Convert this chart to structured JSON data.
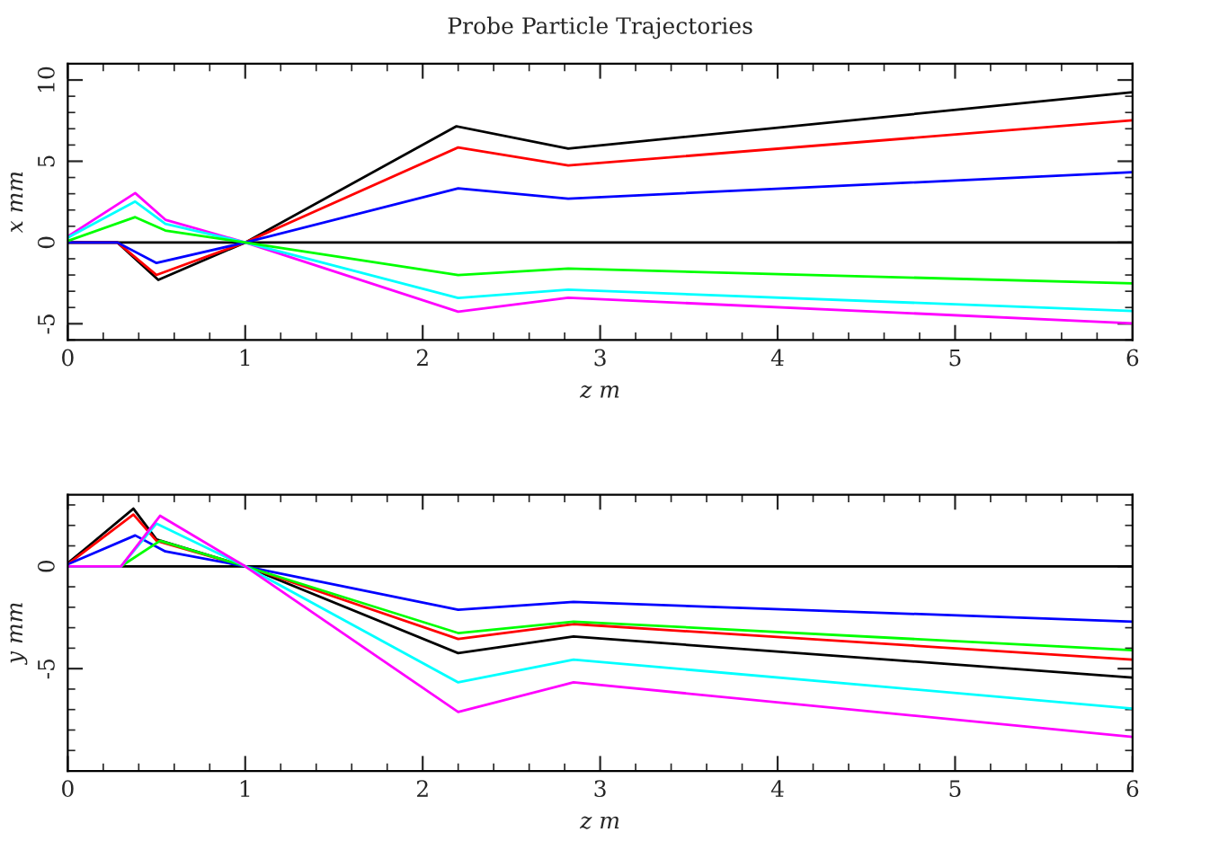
{
  "chart_data": [
    {
      "type": "line",
      "title": "Probe Particle Trajectories",
      "xlabel": "z m",
      "ylabel": "x mm",
      "xlim": [
        0,
        6
      ],
      "xticks": [
        0,
        1,
        2,
        3,
        4,
        5,
        6
      ],
      "ylim": [
        -6,
        11
      ],
      "yticks": [
        -5,
        0,
        5,
        10
      ],
      "ref_lines": [
        {
          "axis": "y",
          "value": 0,
          "color": "#000000"
        }
      ],
      "series": [
        {
          "color": "#000000",
          "x": [
            0,
            0.28,
            0.51,
            1,
            2.19,
            2.82,
            6
          ],
          "values": [
            0,
            0,
            -2.3,
            0,
            7.15,
            5.78,
            9.25
          ]
        },
        {
          "color": "#ff0000",
          "x": [
            0,
            0.28,
            0.5,
            1,
            2.2,
            2.82,
            6
          ],
          "values": [
            0,
            0,
            -2.0,
            0,
            5.85,
            4.74,
            7.52
          ]
        },
        {
          "color": "#0000ff",
          "x": [
            0,
            0.28,
            0.5,
            1,
            2.2,
            2.82,
            6
          ],
          "values": [
            0,
            0,
            -1.26,
            0,
            3.33,
            2.7,
            4.33
          ]
        },
        {
          "color": "#ff00ff",
          "x": [
            0,
            0.38,
            0.55,
            1,
            2.2,
            2.82,
            6
          ],
          "values": [
            0.37,
            3.04,
            1.4,
            0,
            -4.26,
            -3.4,
            -4.97
          ]
        },
        {
          "color": "#00ffff",
          "x": [
            0,
            0.38,
            0.55,
            1,
            2.2,
            2.82,
            6
          ],
          "values": [
            0.3,
            2.52,
            1.15,
            0,
            -3.41,
            -2.9,
            -4.22
          ]
        },
        {
          "color": "#00ff00",
          "x": [
            0,
            0.38,
            0.55,
            1,
            2.2,
            2.82,
            6
          ],
          "values": [
            0.1,
            1.56,
            0.74,
            0,
            -2.0,
            -1.6,
            -2.52
          ]
        }
      ]
    },
    {
      "type": "line",
      "xlabel": "z m",
      "ylabel": "y mm",
      "xlim": [
        0,
        6
      ],
      "xticks": [
        0,
        1,
        2,
        3,
        4,
        5,
        6
      ],
      "ylim": [
        -10,
        3.5
      ],
      "yticks": [
        -5,
        0
      ],
      "ref_lines": [
        {
          "axis": "y",
          "value": 0,
          "color": "#000000"
        }
      ],
      "series": [
        {
          "color": "#000000",
          "x": [
            0,
            0.1,
            0.37,
            0.5,
            1,
            2.2,
            2.85,
            6
          ],
          "values": [
            0.15,
            0.87,
            2.82,
            1.31,
            0,
            -4.24,
            -3.43,
            -5.44
          ]
        },
        {
          "color": "#ff0000",
          "x": [
            0,
            0.37,
            0.5,
            1,
            2.2,
            2.85,
            6
          ],
          "values": [
            0.1,
            2.53,
            1.25,
            0,
            -3.55,
            -2.82,
            -4.56
          ]
        },
        {
          "color": "#0000ff",
          "x": [
            0,
            0.38,
            0.55,
            1,
            2.2,
            2.85,
            6
          ],
          "values": [
            0.1,
            1.51,
            0.73,
            0,
            -2.12,
            -1.74,
            -2.7
          ]
        },
        {
          "color": "#00ff00",
          "x": [
            0,
            0.3,
            0.52,
            1,
            2.2,
            2.85,
            6
          ],
          "values": [
            0,
            0,
            1.25,
            0,
            -3.26,
            -2.7,
            -4.1
          ]
        },
        {
          "color": "#00ffff",
          "x": [
            0,
            0.3,
            0.5,
            1,
            2.2,
            2.85,
            6
          ],
          "values": [
            0,
            0,
            2.09,
            0,
            -5.67,
            -4.56,
            -6.95
          ]
        },
        {
          "color": "#ff00ff",
          "x": [
            0,
            0.3,
            0.52,
            1,
            2.2,
            2.85,
            6
          ],
          "values": [
            0,
            0,
            2.47,
            0,
            -7.12,
            -5.67,
            -8.34
          ]
        }
      ]
    }
  ]
}
